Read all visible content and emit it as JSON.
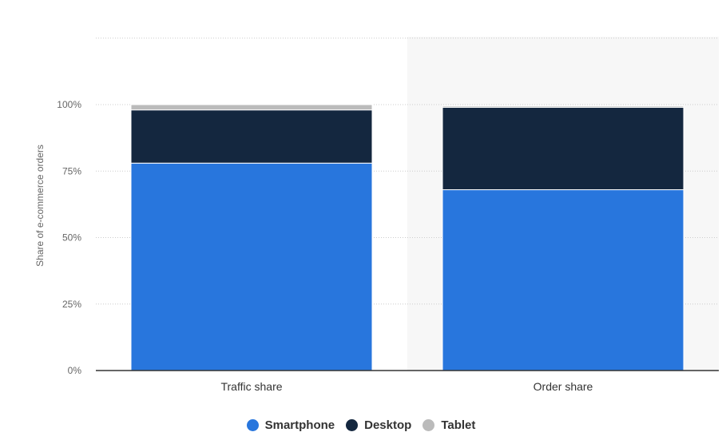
{
  "chart_data": {
    "type": "bar",
    "stacked": true,
    "categories": [
      "Traffic share",
      "Order share"
    ],
    "series": [
      {
        "name": "Smartphone",
        "color": "#2876dd",
        "values": [
          78,
          68
        ]
      },
      {
        "name": "Desktop",
        "color": "#14273f",
        "values": [
          20,
          31
        ]
      },
      {
        "name": "Tablet",
        "color": "#bbbbbb",
        "values": [
          2,
          0.5
        ]
      }
    ],
    "ylabel": "Share of e-commerce orders",
    "xlabel": "",
    "ylim": [
      0,
      100
    ],
    "yticks": [
      {
        "value": 0,
        "label": "0%"
      },
      {
        "value": 25,
        "label": "25%"
      },
      {
        "value": 50,
        "label": "50%"
      },
      {
        "value": 75,
        "label": "75%"
      },
      {
        "value": 100,
        "label": "100%"
      }
    ],
    "grid": true,
    "highlighted_category": "Order share",
    "legend_position": "bottom"
  }
}
